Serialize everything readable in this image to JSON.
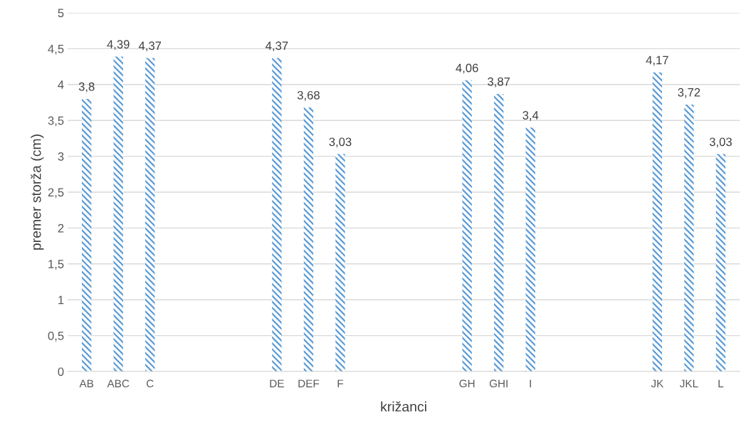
{
  "chart_data": {
    "type": "bar",
    "xlabel": "križanci",
    "ylabel": "premer storža (cm)",
    "categories": [
      "AB",
      "ABC",
      "C",
      null,
      null,
      null,
      "DE",
      "DEF",
      "F",
      null,
      null,
      null,
      "GH",
      "GHI",
      "I",
      null,
      null,
      null,
      "JK",
      "JKL",
      "L"
    ],
    "values": [
      3.8,
      4.39,
      4.37,
      null,
      null,
      null,
      4.37,
      3.68,
      3.03,
      null,
      null,
      null,
      4.06,
      3.87,
      3.4,
      null,
      null,
      null,
      4.17,
      3.72,
      3.03
    ],
    "value_labels": [
      "3,8",
      "4,39",
      "4,37",
      null,
      null,
      null,
      "4,37",
      "3,68",
      "3,03",
      null,
      null,
      null,
      "4,06",
      "3,87",
      "3,4",
      null,
      null,
      null,
      "4,17",
      "3,72",
      "3,03"
    ],
    "color": "#5b9bd5",
    "ylim": [
      0,
      5
    ],
    "yticks": [
      0,
      {
        "value": 0.5,
        "label": "0,5"
      },
      1,
      {
        "value": 1.5,
        "label": "1,5"
      },
      2,
      {
        "value": 2.5,
        "label": "2,5"
      },
      3,
      {
        "value": 3.5,
        "label": "3,5"
      },
      4,
      {
        "value": 4.5,
        "label": "4,5"
      },
      5
    ],
    "grid": "y",
    "legend": false
  }
}
